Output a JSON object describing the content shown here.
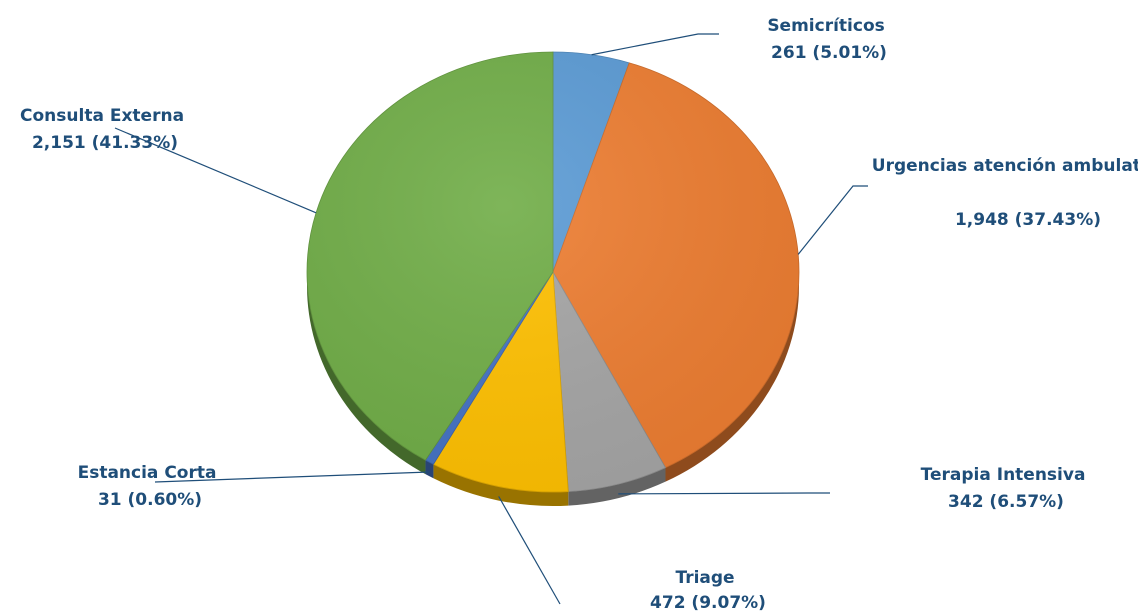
{
  "chart_data": {
    "type": "pie",
    "title": "",
    "slices": [
      {
        "name": "Semicríticos",
        "value_label": "261 (5.01%)",
        "value": 261,
        "percent": 5.01,
        "color": "#5b9bd5"
      },
      {
        "name": "Urgencias atención ambulatoria",
        "value_label": "1,948 (37.43%)",
        "value": 1948,
        "percent": 37.43,
        "color": "#ed7d31"
      },
      {
        "name": "Terapia Intensiva",
        "value_label": "342 (6.57%)",
        "value": 342,
        "percent": 6.57,
        "color": "#a5a5a5"
      },
      {
        "name": "Triage",
        "value_label": "472 (9.07%)",
        "value": 472,
        "percent": 9.07,
        "color": "#ffc000"
      },
      {
        "name": "Estancia Corta",
        "value_label": "31 (0.60%)",
        "value": 31,
        "percent": 0.6,
        "color": "#4472c4"
      },
      {
        "name": "Consulta Externa",
        "value_label": "2,151 (41.33%)",
        "value": 2151,
        "percent": 41.33,
        "color": "#70ad47"
      }
    ]
  }
}
